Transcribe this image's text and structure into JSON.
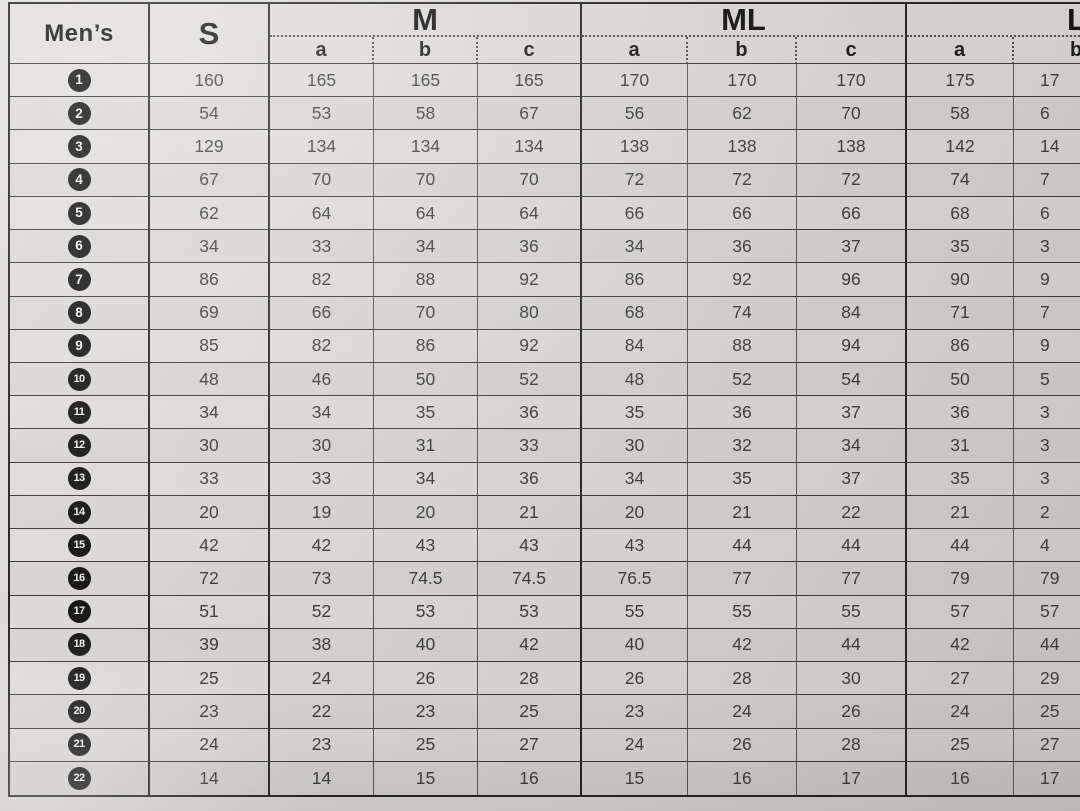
{
  "table": {
    "corner_label": "Men’s",
    "groups": [
      {
        "label": "S",
        "subcols": []
      },
      {
        "label": "M",
        "subcols": [
          "a",
          "b",
          "c"
        ]
      },
      {
        "label": "ML",
        "subcols": [
          "a",
          "b",
          "c"
        ]
      },
      {
        "label": "L",
        "subcols": [
          "a",
          "b"
        ]
      }
    ],
    "rows": [
      {
        "num": "1",
        "s": "160",
        "m_a": "165",
        "m_b": "165",
        "m_c": "165",
        "ml_a": "170",
        "ml_b": "170",
        "ml_c": "170",
        "l_a": "175",
        "l_b": "17"
      },
      {
        "num": "2",
        "s": "54",
        "m_a": "53",
        "m_b": "58",
        "m_c": "67",
        "ml_a": "56",
        "ml_b": "62",
        "ml_c": "70",
        "l_a": "58",
        "l_b": "6"
      },
      {
        "num": "3",
        "s": "129",
        "m_a": "134",
        "m_b": "134",
        "m_c": "134",
        "ml_a": "138",
        "ml_b": "138",
        "ml_c": "138",
        "l_a": "142",
        "l_b": "14"
      },
      {
        "num": "4",
        "s": "67",
        "m_a": "70",
        "m_b": "70",
        "m_c": "70",
        "ml_a": "72",
        "ml_b": "72",
        "ml_c": "72",
        "l_a": "74",
        "l_b": "7"
      },
      {
        "num": "5",
        "s": "62",
        "m_a": "64",
        "m_b": "64",
        "m_c": "64",
        "ml_a": "66",
        "ml_b": "66",
        "ml_c": "66",
        "l_a": "68",
        "l_b": "6"
      },
      {
        "num": "6",
        "s": "34",
        "m_a": "33",
        "m_b": "34",
        "m_c": "36",
        "ml_a": "34",
        "ml_b": "36",
        "ml_c": "37",
        "l_a": "35",
        "l_b": "3"
      },
      {
        "num": "7",
        "s": "86",
        "m_a": "82",
        "m_b": "88",
        "m_c": "92",
        "ml_a": "86",
        "ml_b": "92",
        "ml_c": "96",
        "l_a": "90",
        "l_b": "9"
      },
      {
        "num": "8",
        "s": "69",
        "m_a": "66",
        "m_b": "70",
        "m_c": "80",
        "ml_a": "68",
        "ml_b": "74",
        "ml_c": "84",
        "l_a": "71",
        "l_b": "7"
      },
      {
        "num": "9",
        "s": "85",
        "m_a": "82",
        "m_b": "86",
        "m_c": "92",
        "ml_a": "84",
        "ml_b": "88",
        "ml_c": "94",
        "l_a": "86",
        "l_b": "9"
      },
      {
        "num": "10",
        "s": "48",
        "m_a": "46",
        "m_b": "50",
        "m_c": "52",
        "ml_a": "48",
        "ml_b": "52",
        "ml_c": "54",
        "l_a": "50",
        "l_b": "5"
      },
      {
        "num": "11",
        "s": "34",
        "m_a": "34",
        "m_b": "35",
        "m_c": "36",
        "ml_a": "35",
        "ml_b": "36",
        "ml_c": "37",
        "l_a": "36",
        "l_b": "3"
      },
      {
        "num": "12",
        "s": "30",
        "m_a": "30",
        "m_b": "31",
        "m_c": "33",
        "ml_a": "30",
        "ml_b": "32",
        "ml_c": "34",
        "l_a": "31",
        "l_b": "3"
      },
      {
        "num": "13",
        "s": "33",
        "m_a": "33",
        "m_b": "34",
        "m_c": "36",
        "ml_a": "34",
        "ml_b": "35",
        "ml_c": "37",
        "l_a": "35",
        "l_b": "3"
      },
      {
        "num": "14",
        "s": "20",
        "m_a": "19",
        "m_b": "20",
        "m_c": "21",
        "ml_a": "20",
        "ml_b": "21",
        "ml_c": "22",
        "l_a": "21",
        "l_b": "2"
      },
      {
        "num": "15",
        "s": "42",
        "m_a": "42",
        "m_b": "43",
        "m_c": "43",
        "ml_a": "43",
        "ml_b": "44",
        "ml_c": "44",
        "l_a": "44",
        "l_b": "4"
      },
      {
        "num": "16",
        "s": "72",
        "m_a": "73",
        "m_b": "74.5",
        "m_c": "74.5",
        "ml_a": "76.5",
        "ml_b": "77",
        "ml_c": "77",
        "l_a": "79",
        "l_b": "79"
      },
      {
        "num": "17",
        "s": "51",
        "m_a": "52",
        "m_b": "53",
        "m_c": "53",
        "ml_a": "55",
        "ml_b": "55",
        "ml_c": "55",
        "l_a": "57",
        "l_b": "57"
      },
      {
        "num": "18",
        "s": "39",
        "m_a": "38",
        "m_b": "40",
        "m_c": "42",
        "ml_a": "40",
        "ml_b": "42",
        "ml_c": "44",
        "l_a": "42",
        "l_b": "44"
      },
      {
        "num": "19",
        "s": "25",
        "m_a": "24",
        "m_b": "26",
        "m_c": "28",
        "ml_a": "26",
        "ml_b": "28",
        "ml_c": "30",
        "l_a": "27",
        "l_b": "29"
      },
      {
        "num": "20",
        "s": "23",
        "m_a": "22",
        "m_b": "23",
        "m_c": "25",
        "ml_a": "23",
        "ml_b": "24",
        "ml_c": "26",
        "l_a": "24",
        "l_b": "25"
      },
      {
        "num": "21",
        "s": "24",
        "m_a": "23",
        "m_b": "25",
        "m_c": "27",
        "ml_a": "24",
        "ml_b": "26",
        "ml_c": "28",
        "l_a": "25",
        "l_b": "27"
      },
      {
        "num": "22",
        "s": "14",
        "m_a": "14",
        "m_b": "15",
        "m_c": "16",
        "ml_a": "15",
        "ml_b": "16",
        "ml_c": "17",
        "l_a": "16",
        "l_b": "17"
      }
    ]
  }
}
